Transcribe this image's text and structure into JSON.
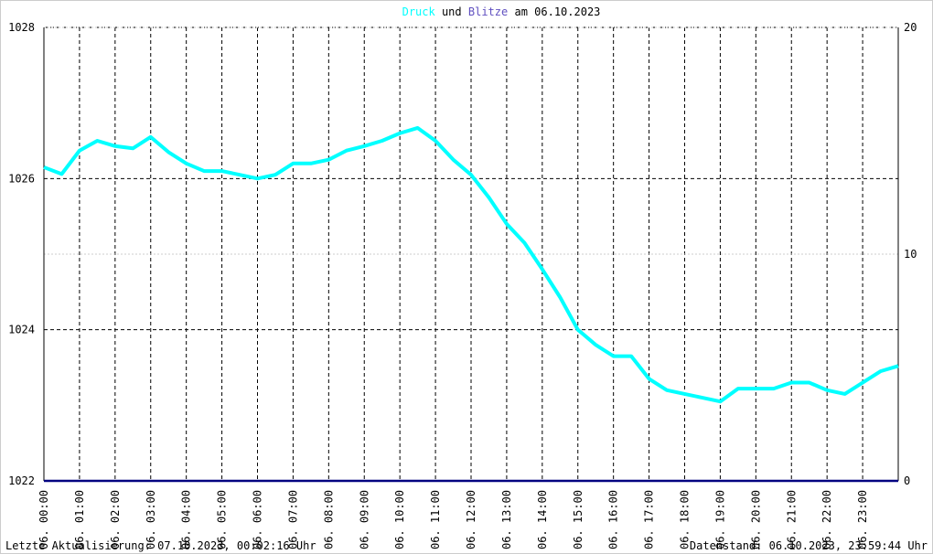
{
  "chart_data": {
    "type": "line",
    "title_date": "am 06.10.2023",
    "title_joiner": "und",
    "footer_left": "Letzte Aktualisierung: 07.10.2023, 00:02:16 Uhr",
    "footer_right": "Datenstand: 06.10.2023, 23:59:44 Uhr",
    "xlim": [
      0,
      24
    ],
    "xticks": [
      {
        "value": 0,
        "label": "06. 00:00"
      },
      {
        "value": 1,
        "label": "06. 01:00"
      },
      {
        "value": 2,
        "label": "06. 02:00"
      },
      {
        "value": 3,
        "label": "06. 03:00"
      },
      {
        "value": 4,
        "label": "06. 04:00"
      },
      {
        "value": 5,
        "label": "06. 05:00"
      },
      {
        "value": 6,
        "label": "06. 06:00"
      },
      {
        "value": 7,
        "label": "06. 07:00"
      },
      {
        "value": 8,
        "label": "06. 08:00"
      },
      {
        "value": 9,
        "label": "06. 09:00"
      },
      {
        "value": 10,
        "label": "06. 10:00"
      },
      {
        "value": 11,
        "label": "06. 11:00"
      },
      {
        "value": 12,
        "label": "06. 12:00"
      },
      {
        "value": 13,
        "label": "06. 13:00"
      },
      {
        "value": 14,
        "label": "06. 14:00"
      },
      {
        "value": 15,
        "label": "06. 15:00"
      },
      {
        "value": 16,
        "label": "06. 16:00"
      },
      {
        "value": 17,
        "label": "06. 17:00"
      },
      {
        "value": 18,
        "label": "06. 18:00"
      },
      {
        "value": 19,
        "label": "06. 19:00"
      },
      {
        "value": 20,
        "label": "06. 20:00"
      },
      {
        "value": 21,
        "label": "06. 21:00"
      },
      {
        "value": 22,
        "label": "06. 22:00"
      },
      {
        "value": 23,
        "label": "06. 23:00"
      }
    ],
    "ylim": [
      1022,
      1028
    ],
    "yticks": [
      1022,
      1024,
      1026,
      1028
    ],
    "y2lim": [
      0,
      20
    ],
    "y2ticks": [
      0,
      10,
      20
    ],
    "series": [
      {
        "name": "Druck",
        "color": "#00ffff",
        "x": [
          0,
          0.5,
          1,
          1.5,
          2,
          2.5,
          3,
          3.5,
          4,
          4.5,
          5,
          5.5,
          6,
          6.5,
          7,
          7.5,
          8,
          8.5,
          9,
          9.5,
          10,
          10.5,
          11,
          11.5,
          12,
          12.5,
          13,
          13.5,
          14,
          14.5,
          15,
          15.5,
          16,
          16.5,
          17,
          17.5,
          18,
          18.5,
          19,
          19.5,
          20,
          20.5,
          21,
          21.5,
          22,
          22.5,
          23,
          23.5,
          24
        ],
        "values": [
          1026.15,
          1026.06,
          1026.37,
          1026.5,
          1026.43,
          1026.4,
          1026.55,
          1026.35,
          1026.2,
          1026.1,
          1026.1,
          1026.05,
          1026.0,
          1026.05,
          1026.2,
          1026.2,
          1026.25,
          1026.37,
          1026.43,
          1026.5,
          1026.6,
          1026.67,
          1026.5,
          1026.25,
          1026.05,
          1025.75,
          1025.4,
          1025.15,
          1024.8,
          1024.43,
          1024.0,
          1023.8,
          1023.65,
          1023.65,
          1023.35,
          1023.2,
          1023.15,
          1023.1,
          1023.05,
          1023.22,
          1023.22,
          1023.22,
          1023.3,
          1023.3,
          1023.2,
          1023.15,
          1023.3,
          1023.45,
          1023.52
        ]
      },
      {
        "name": "Blitze",
        "color": "#000080",
        "axis": "y2",
        "x": [
          0,
          24
        ],
        "values": [
          0,
          0
        ]
      }
    ]
  }
}
